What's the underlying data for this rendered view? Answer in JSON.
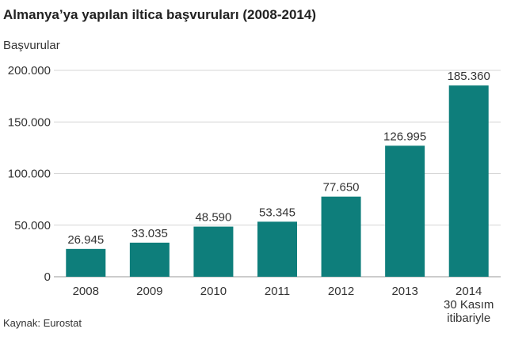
{
  "chart_data": {
    "type": "bar",
    "title": "Almanya’ya yapılan iltica başvuruları (2008-2014)",
    "ylabel": "Başvurular",
    "xlabel": "",
    "source": "Kaynak: Eurostat",
    "categories": [
      [
        "2008"
      ],
      [
        "2009"
      ],
      [
        "2010"
      ],
      [
        "2011"
      ],
      [
        "2012"
      ],
      [
        "2013"
      ],
      [
        "2014",
        "30 Kasım",
        "itibariyle"
      ]
    ],
    "values": [
      26945,
      33035,
      48590,
      53345,
      77650,
      126995,
      185360
    ],
    "value_labels": [
      "26.945",
      "33.035",
      "48.590",
      "53.345",
      "77.650",
      "126.995",
      "185.360"
    ],
    "yticks": [
      0,
      50000,
      100000,
      150000,
      200000
    ],
    "ytick_labels": [
      "0",
      "50.000",
      "100.000",
      "150.000",
      "200.000"
    ],
    "ylim": [
      0,
      200000
    ],
    "grid": true,
    "colors": {
      "bar": "#0e7e7b"
    }
  }
}
